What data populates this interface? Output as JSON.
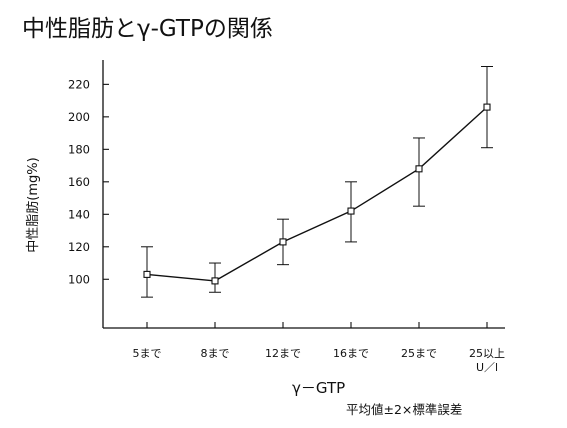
{
  "chart_data": {
    "type": "line",
    "title": "中性脂肪とγ-GTPの関係",
    "xlabel": "γ－GTP",
    "ylabel": "中性脂肪(mg%)",
    "note": "平均値±2×標準誤差",
    "categories": [
      "5まで",
      "8まで",
      "12まで",
      "16まで",
      "25まで",
      "25以上"
    ],
    "category_sublabels": [
      "",
      "",
      "",
      "",
      "",
      "U／l"
    ],
    "series": [
      {
        "values": [
          103,
          99,
          123,
          142,
          168,
          206
        ],
        "error_low": [
          89,
          92,
          109,
          123,
          145,
          181
        ],
        "error_high": [
          120,
          110,
          137,
          160,
          187,
          231
        ]
      }
    ],
    "ylim": [
      70,
      235
    ],
    "yticks": [
      100,
      120,
      140,
      160,
      180,
      200,
      220
    ],
    "grid": false,
    "marker": "square",
    "colors": {
      "line": "#111111",
      "axis": "#111111",
      "text": "#111111",
      "background": "#ffffff"
    }
  }
}
